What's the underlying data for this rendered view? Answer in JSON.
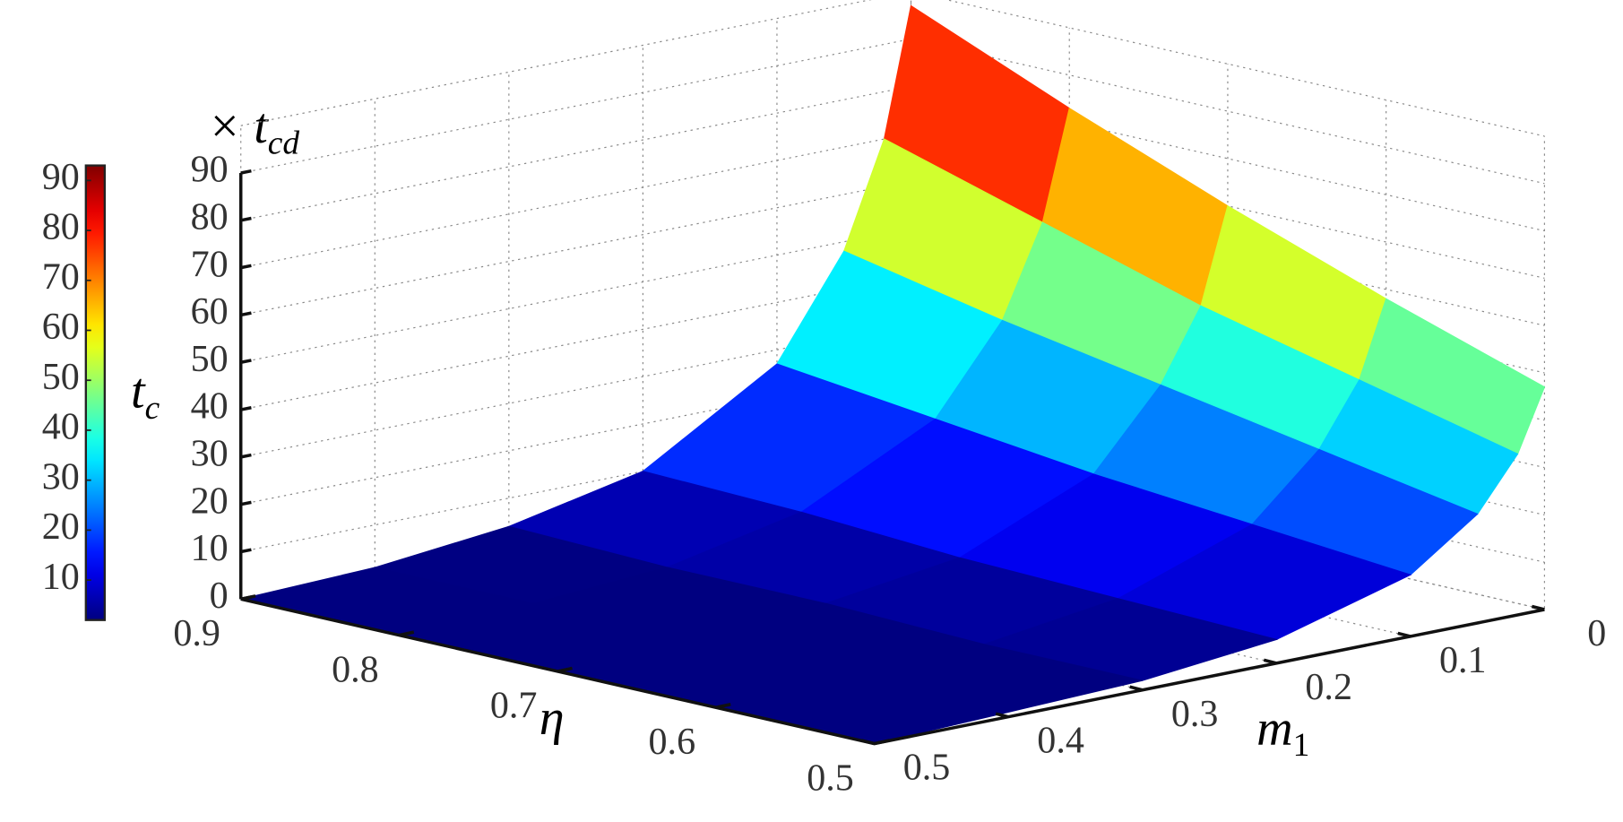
{
  "chart_data": {
    "type": "surface",
    "xlabel": {
      "text": "m",
      "subscript": "1"
    },
    "ylabel": {
      "text": "η"
    },
    "zlabel": {
      "text": "t",
      "subscript": "c"
    },
    "zunit": {
      "text": "× t",
      "subscript": "cd"
    },
    "x": [
      0,
      0.02,
      0.05,
      0.1,
      0.2,
      0.3,
      0.4,
      0.5
    ],
    "y": [
      0.5,
      0.6,
      0.7,
      0.8,
      0.9
    ],
    "values": [
      [
        47,
        34,
        23,
        13,
        5,
        2,
        1,
        0
      ],
      [
        58,
        42,
        29,
        16,
        6,
        2,
        1,
        0
      ],
      [
        70,
        50,
        35,
        19,
        7,
        3,
        1,
        0
      ],
      [
        83,
        60,
        41,
        23,
        9,
        3,
        1,
        0
      ],
      [
        97,
        70,
        48,
        27,
        10,
        4,
        1,
        0
      ]
    ],
    "xlim": [
      0,
      0.5
    ],
    "ylim": [
      0.5,
      0.9
    ],
    "zlim": [
      0,
      100
    ],
    "xticks": [
      0,
      0.1,
      0.2,
      0.3,
      0.4,
      0.5
    ],
    "yticks": [
      0.5,
      0.6,
      0.7,
      0.8,
      0.9
    ],
    "zticks": [
      0,
      10,
      20,
      30,
      40,
      50,
      60,
      70,
      80,
      90
    ],
    "colormap": "jet",
    "clim": [
      2,
      93
    ],
    "colorbar_ticks": [
      10,
      20,
      30,
      40,
      50,
      60,
      70,
      80,
      90
    ],
    "grid": true
  }
}
